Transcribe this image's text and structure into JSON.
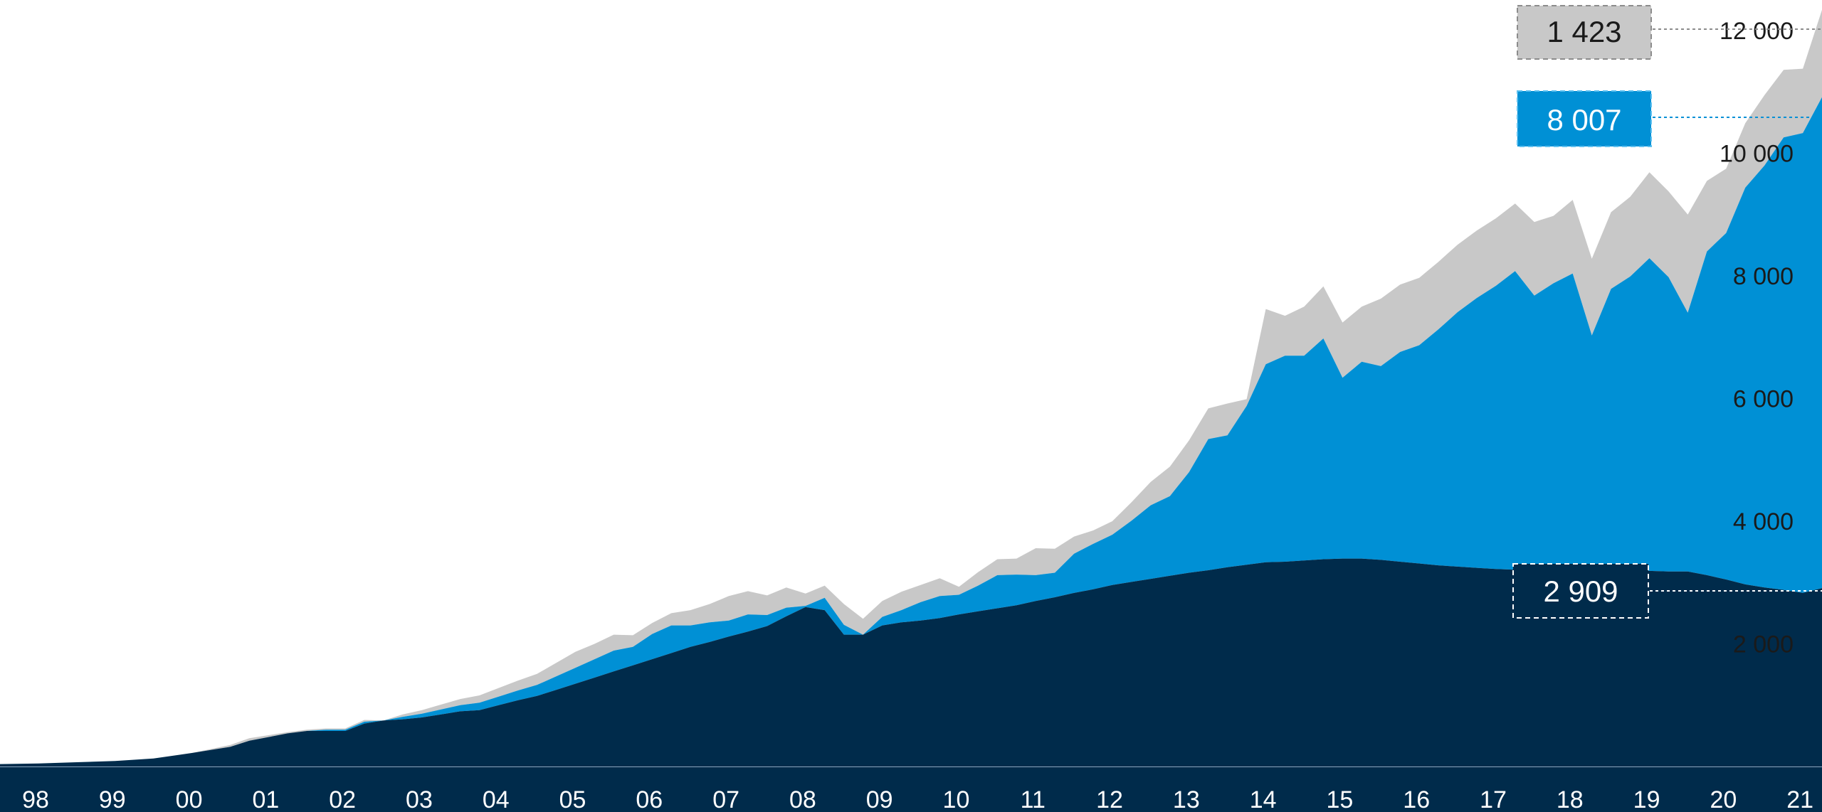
{
  "chart_data": {
    "type": "area",
    "stacked": true,
    "x_tick_labels": [
      "98",
      "99",
      "00",
      "01",
      "02",
      "03",
      "04",
      "05",
      "06",
      "07",
      "08",
      "09",
      "10",
      "11",
      "12",
      "13",
      "14",
      "15",
      "16",
      "17",
      "18",
      "19",
      "20",
      "21"
    ],
    "y_tick_labels": [
      "2 000",
      "4 000",
      "6 000",
      "8 000",
      "10 000",
      "12 000"
    ],
    "y_tick_values": [
      2000,
      4000,
      6000,
      8000,
      10000,
      12000
    ],
    "ylim": [
      0,
      12500
    ],
    "y_axis_side": "right",
    "grid": false,
    "colors": {
      "bottom": "#002b4b",
      "middle": "#0090d5",
      "top": "#c8c8c8",
      "x_axis_band": "#002b4b"
    },
    "x": [
      1998.0,
      1998.5,
      1999.0,
      1999.5,
      2000.0,
      2000.5,
      2001.0,
      2001.25,
      2001.5,
      2001.75,
      2002.0,
      2002.25,
      2002.5,
      2002.75,
      2003.0,
      2003.25,
      2003.5,
      2003.75,
      2004.0,
      2004.25,
      2004.5,
      2004.75,
      2005.0,
      2005.25,
      2005.5,
      2005.75,
      2006.0,
      2006.25,
      2006.5,
      2006.75,
      2007.0,
      2007.25,
      2007.5,
      2007.75,
      2008.0,
      2008.25,
      2008.5,
      2008.75,
      2009.0,
      2009.25,
      2009.5,
      2009.75,
      2010.0,
      2010.25,
      2010.5,
      2010.75,
      2011.0,
      2011.25,
      2011.5,
      2011.75,
      2012.0,
      2012.25,
      2012.5,
      2012.75,
      2013.0,
      2013.25,
      2013.5,
      2013.75,
      2014.0,
      2014.25,
      2014.5,
      2014.75,
      2015.0,
      2015.25,
      2015.5,
      2015.75,
      2016.0,
      2016.25,
      2016.5,
      2016.75,
      2017.0,
      2017.25,
      2017.5,
      2017.75,
      2018.0,
      2018.25,
      2018.5,
      2018.75,
      2019.0,
      2019.25,
      2019.5,
      2019.75,
      2020.0,
      2020.25,
      2020.5,
      2020.75,
      2021.0,
      2021.25,
      2021.5,
      2021.75
    ],
    "series": [
      {
        "values": [
          40,
          50,
          70,
          90,
          130,
          220,
          320,
          420,
          480,
          540,
          580,
          580,
          580,
          700,
          750,
          770,
          800,
          850,
          900,
          920,
          1000,
          1080,
          1150,
          1250,
          1350,
          1450,
          1550,
          1650,
          1750,
          1850,
          1950,
          2030,
          2120,
          2200,
          2290,
          2450,
          2600,
          2550,
          2150,
          2150,
          2300,
          2350,
          2380,
          2420,
          2480,
          2530,
          2580,
          2630,
          2700,
          2760,
          2830,
          2890,
          2960,
          3010,
          3060,
          3110,
          3160,
          3200,
          3250,
          3290,
          3330,
          3340,
          3360,
          3380,
          3390,
          3390,
          3370,
          3340,
          3310,
          3280,
          3260,
          3240,
          3220,
          3210,
          3210,
          3200,
          3190,
          3180,
          3190,
          3190,
          3190,
          3180,
          3180,
          3120,
          3050,
          2970,
          2920,
          2880,
          2830,
          2909
        ]
      },
      {
        "values": [
          0,
          0,
          0,
          0,
          0,
          0,
          0,
          0,
          0,
          0,
          0,
          20,
          20,
          30,
          0,
          40,
          60,
          80,
          100,
          120,
          140,
          160,
          180,
          220,
          260,
          300,
          340,
          300,
          410,
          450,
          350,
          320,
          260,
          280,
          180,
          140,
          20,
          200,
          160,
          0,
          140,
          200,
          300,
          360,
          320,
          420,
          540,
          500,
          420,
          400,
          640,
          740,
          820,
          1000,
          1200,
          1300,
          1640,
          2140,
          2150,
          2590,
          3230,
          3360,
          3340,
          3600,
          2950,
          3210,
          3160,
          3420,
          3560,
          3850,
          4150,
          4400,
          4620,
          4870,
          4470,
          4680,
          4850,
          3850,
          4600,
          4800,
          5100,
          4800,
          4220,
          5280,
          5650,
          6470,
          6880,
          7380,
          7500,
          8007
        ]
      },
      {
        "values": [
          0,
          0,
          0,
          0,
          0,
          0,
          30,
          40,
          30,
          20,
          20,
          20,
          20,
          30,
          0,
          40,
          60,
          80,
          100,
          120,
          140,
          160,
          180,
          220,
          260,
          250,
          260,
          190,
          180,
          200,
          250,
          300,
          400,
          380,
          320,
          330,
          200,
          200,
          340,
          260,
          260,
          300,
          280,
          290,
          130,
          220,
          260,
          260,
          440,
          390,
          280,
          220,
          220,
          300,
          380,
          480,
          520,
          500,
          520,
          110,
          900,
          650,
          800,
          850,
          900,
          900,
          1100,
          1100,
          1100,
          1100,
          1100,
          1100,
          1100,
          1100,
          1200,
          1100,
          1200,
          1250,
          1250,
          1300,
          1400,
          1400,
          1600,
          1150,
          1050,
          1050,
          1150,
          1100,
          1050,
          1423
        ]
      }
    ],
    "value_labels": {
      "top": "1 423",
      "middle": "8 007",
      "bottom": "2 909"
    }
  }
}
